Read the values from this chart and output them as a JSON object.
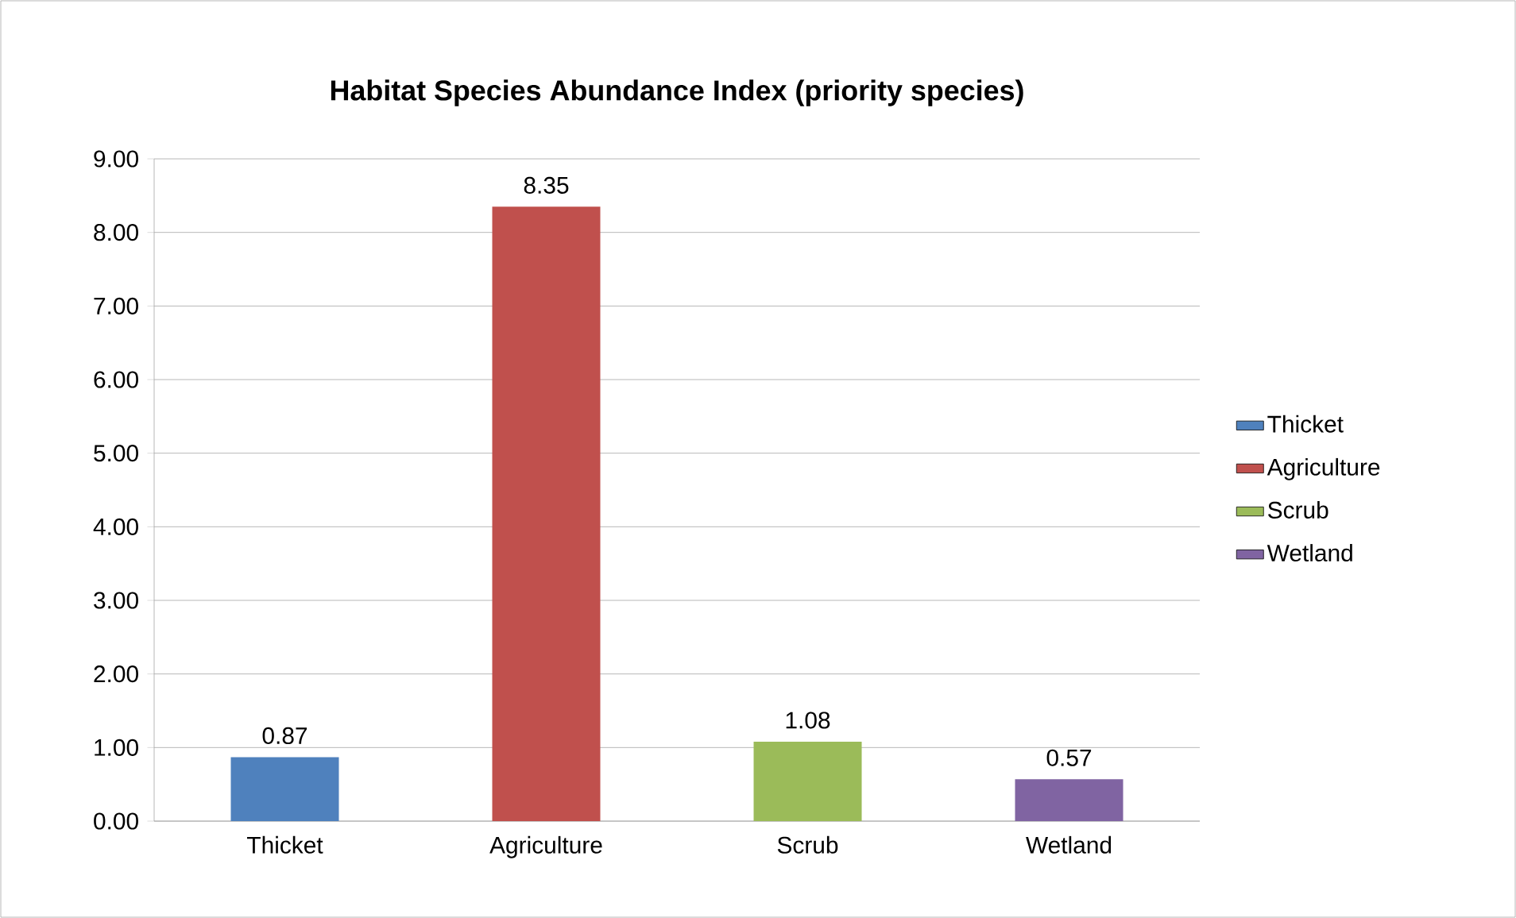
{
  "chart_data": {
    "type": "bar",
    "title": "Habitat Species Abundance Index (priority species)",
    "categories": [
      "Thicket",
      "Agriculture",
      "Scrub",
      "Wetland"
    ],
    "series": [
      {
        "name": "Thicket",
        "color": "#4f81bd",
        "values": [
          0.87,
          null,
          null,
          null
        ]
      },
      {
        "name": "Agriculture",
        "color": "#c0504d",
        "values": [
          null,
          8.35,
          null,
          null
        ]
      },
      {
        "name": "Scrub",
        "color": "#9bbb59",
        "values": [
          null,
          null,
          1.08,
          null
        ]
      },
      {
        "name": "Wetland",
        "color": "#8064a2",
        "values": [
          null,
          null,
          null,
          0.57
        ]
      }
    ],
    "ylim": [
      0,
      9
    ],
    "yticks": [
      {
        "value": 0,
        "label": "0.00"
      },
      {
        "value": 1,
        "label": "1.00"
      },
      {
        "value": 2,
        "label": "2.00"
      },
      {
        "value": 3,
        "label": "3.00"
      },
      {
        "value": 4,
        "label": "4.00"
      },
      {
        "value": 5,
        "label": "5.00"
      },
      {
        "value": 6,
        "label": "6.00"
      },
      {
        "value": 7,
        "label": "7.00"
      },
      {
        "value": 8,
        "label": "8.00"
      },
      {
        "value": 9,
        "label": "9.00"
      }
    ],
    "grid": "y",
    "legend": "right",
    "data_labels": true
  }
}
